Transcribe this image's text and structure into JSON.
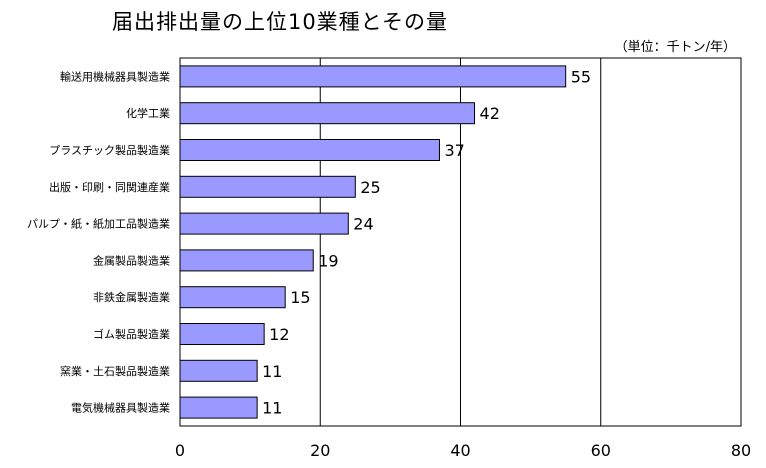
{
  "chart_data": {
    "type": "bar",
    "orientation": "horizontal",
    "title": "届出排出量の上位10業種とその量",
    "unit_label": "（単位：千トン/年）",
    "categories": [
      "輸送用機械器具製造業",
      "化学工業",
      "プラスチック製品製造業",
      "出版・印刷・同関連産業",
      "パルプ・紙・紙加工品製造業",
      "金属製品製造業",
      "非鉄金属製造業",
      "ゴム製品製造業",
      "窯業・土石製品製造業",
      "電気機械器具製造業"
    ],
    "values": [
      55,
      42,
      37,
      25,
      24,
      19,
      15,
      12,
      11,
      11
    ],
    "value_labels": [
      "55",
      "42",
      "37",
      "25",
      "24",
      "19",
      "15",
      "12",
      "11",
      "11"
    ],
    "xlim": [
      0,
      80
    ],
    "xticks": [
      0,
      20,
      40,
      60,
      80
    ],
    "grid": true,
    "bar_color": "#9999ff"
  }
}
